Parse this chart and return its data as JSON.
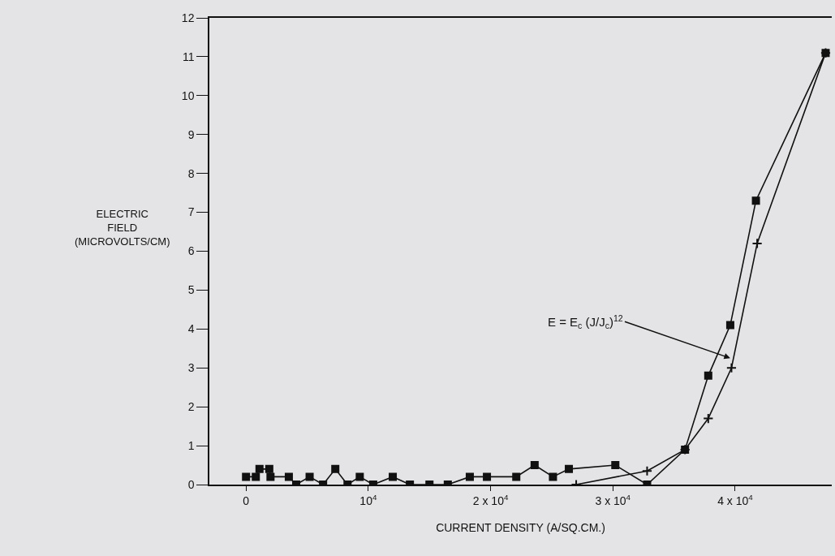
{
  "chart_data": {
    "type": "line",
    "xlabel": "CURRENT DENSITY (A/SQ.CM.)",
    "ylabel": "ELECTRIC\nFIELD\n(MICROVOLTS/CM)",
    "xlim": [
      -3000,
      47900
    ],
    "ylim": [
      0,
      12
    ],
    "xticks": [
      0,
      {
        "value": 10000,
        "label": "10$^{4}$"
      },
      {
        "value": 20000,
        "label": "2 x 10$^{4}$"
      },
      {
        "value": 30000,
        "label": "3 x 10$^{4}$"
      },
      {
        "value": 40000,
        "label": "4 x 10$^{4}$"
      }
    ],
    "yticks": [
      0,
      1,
      2,
      3,
      4,
      5,
      6,
      7,
      8,
      9,
      10,
      11,
      12
    ],
    "grid": false,
    "series": [
      {
        "color": "#111111",
        "marker": "square",
        "line_style": "solid",
        "x": [
          0,
          800,
          1100,
          1900,
          2000,
          3500,
          4100,
          5200,
          6300,
          7300,
          8300,
          9300,
          10400,
          12000,
          13400,
          15000,
          16500,
          18300,
          19700,
          22100,
          23600,
          25100,
          26400,
          30200,
          32800,
          35900,
          37800,
          39600,
          41700,
          47400
        ],
        "values": [
          0.2,
          0.2,
          0.4,
          0.4,
          0.2,
          0.2,
          0,
          0.2,
          0,
          0.4,
          0,
          0.2,
          0,
          0.2,
          0,
          0,
          0,
          0.2,
          0.2,
          0.2,
          0.5,
          0.2,
          0.4,
          0.5,
          0,
          0.9,
          2.8,
          4.1,
          7.3,
          11.1
        ]
      },
      {
        "color": "#111111",
        "marker": "cross",
        "line_style": "solid",
        "x": [
          27000,
          32800,
          35900,
          37800,
          39700,
          41800,
          47400
        ],
        "values": [
          0,
          0.35,
          0.9,
          1.7,
          3.0,
          6.2,
          11.1
        ]
      }
    ],
    "annotations": [
      {
        "text": "E = E$_{c}$ (J/J$_{c}$)$^{12}$",
        "x": 39600,
        "y": 3.25
      }
    ]
  }
}
